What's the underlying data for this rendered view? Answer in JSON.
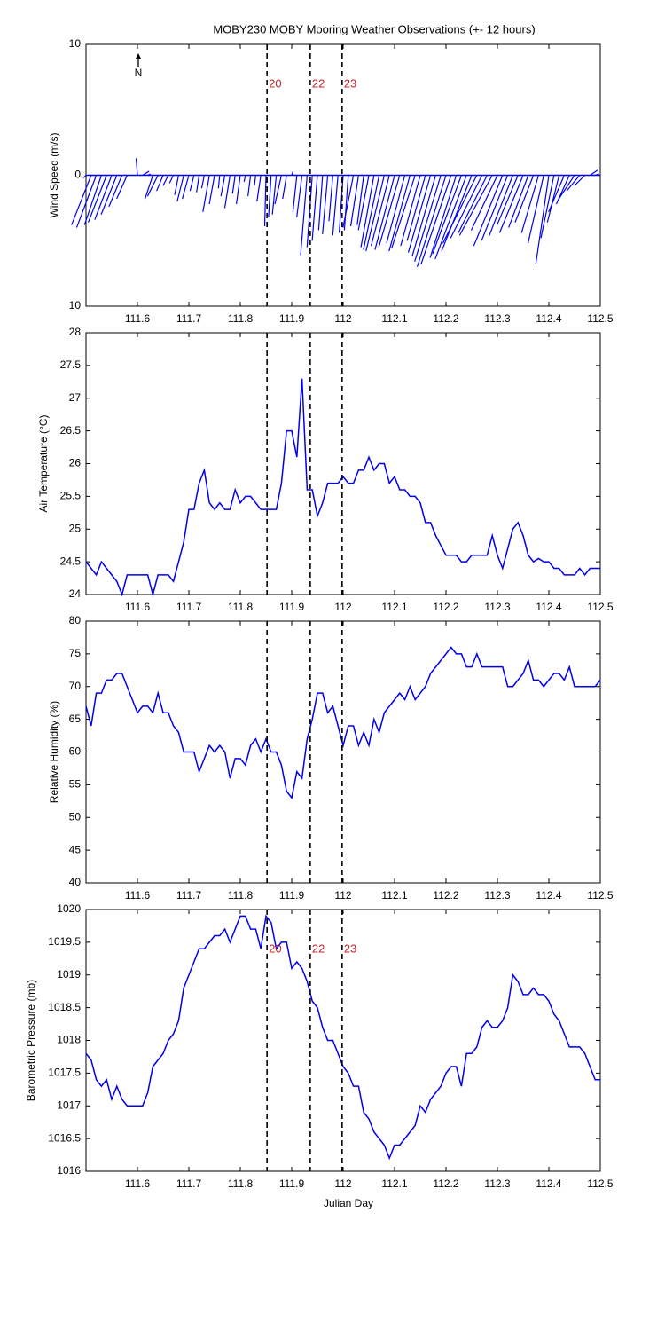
{
  "title": "MOBY230 MOBY Mooring Weather Observations (+- 12 hours)",
  "xlabel": "Julian Day",
  "xlim": [
    111.5,
    112.5
  ],
  "xticks": [
    111.6,
    111.7,
    111.8,
    111.9,
    112,
    112.1,
    112.2,
    112.3,
    112.4,
    112.5
  ],
  "events": [
    {
      "x": 111.852,
      "label": "20"
    },
    {
      "x": 111.936,
      "label": "22"
    },
    {
      "x": 111.998,
      "label": "23"
    }
  ],
  "x": [
    111.5,
    111.51,
    111.52,
    111.53,
    111.54,
    111.55,
    111.56,
    111.57,
    111.58,
    111.59,
    111.6,
    111.61,
    111.62,
    111.63,
    111.64,
    111.65,
    111.66,
    111.67,
    111.68,
    111.69,
    111.7,
    111.71,
    111.72,
    111.73,
    111.74,
    111.75,
    111.76,
    111.77,
    111.78,
    111.79,
    111.8,
    111.81,
    111.82,
    111.83,
    111.84,
    111.85,
    111.86,
    111.87,
    111.88,
    111.89,
    111.9,
    111.91,
    111.92,
    111.93,
    111.94,
    111.95,
    111.96,
    111.97,
    111.98,
    111.99,
    112,
    112.01,
    112.02,
    112.03,
    112.04,
    112.05,
    112.06,
    112.07,
    112.08,
    112.09,
    112.1,
    112.11,
    112.12,
    112.13,
    112.14,
    112.15,
    112.16,
    112.17,
    112.18,
    112.19,
    112.2,
    112.21,
    112.22,
    112.23,
    112.24,
    112.25,
    112.26,
    112.27,
    112.28,
    112.29,
    112.3,
    112.31,
    112.32,
    112.33,
    112.34,
    112.35,
    112.36,
    112.37,
    112.38,
    112.39,
    112.4,
    112.41,
    112.42,
    112.43,
    112.44,
    112.45,
    112.46,
    112.47,
    112.48,
    112.49,
    112.5
  ],
  "chart_data": [
    {
      "type": "stick",
      "ylabel": "Wind Speed (m/s)",
      "color": "#0000ee",
      "ylim": [
        -10,
        10
      ],
      "yticks": [
        {
          "value": -10,
          "label": "10"
        },
        0,
        10
      ],
      "north_label": "N",
      "show_event_labels": true,
      "u": [
        -0.2,
        -1.5,
        -1.5,
        -1.3,
        -1.4,
        -1.3,
        -1.2,
        -1.0,
        -0.8,
        0.0,
        -0.1,
        0.5,
        0.2,
        -0.6,
        -0.8,
        -0.5,
        -0.4,
        -0.3,
        -0.3,
        -0.5,
        -0.5,
        -0.3,
        -0.2,
        -0.2,
        -0.5,
        -0.4,
        -0.1,
        -0.3,
        -0.4,
        -0.2,
        -0.3,
        -0.1,
        -0.2,
        -0.1,
        -0.3,
        -0.1,
        -0.2,
        -0.3,
        -0.5,
        -0.3,
        0.1,
        -0.3,
        -0.4,
        -0.5,
        -0.4,
        -0.4,
        -0.3,
        -0.4,
        -0.3,
        -0.4,
        -0.3,
        -0.3,
        -0.8,
        -0.6,
        -0.5,
        -0.8,
        -1.0,
        -1.2,
        -1.4,
        -1.4,
        -1.5,
        -1.6,
        -1.4,
        -1.6,
        -1.8,
        -1.5,
        -1.4,
        -1.7,
        -1.8,
        -2.0,
        -2.2,
        -2.3,
        -2.0,
        -2.2,
        -2.4,
        -2.3,
        -2.6,
        -2.4,
        -2.2,
        -2.5,
        -2.0,
        -2.2,
        -2.0,
        -1.8,
        -1.6,
        -1.8,
        -1.5,
        -1.4,
        -1.3,
        -1.2,
        -1.0,
        -1.0,
        -0.9,
        -1.2,
        -1.0,
        -1.2,
        -1.0,
        -0.8,
        0.6,
        0.3,
        0.0
      ],
      "v": [
        -0.2,
        -3.8,
        -4.0,
        -3.8,
        -3.6,
        -3.4,
        -3.0,
        -2.4,
        -1.8,
        0.0,
        1.3,
        0.3,
        0.1,
        -1.8,
        -1.6,
        -1.2,
        -0.8,
        -0.6,
        -1.5,
        -2.0,
        -1.8,
        -1.2,
        -1.3,
        -1.0,
        -2.8,
        -2.2,
        -1.0,
        -1.6,
        -2.5,
        -1.4,
        -2.2,
        -0.5,
        -1.6,
        -0.8,
        -2.0,
        -3.9,
        -3.2,
        -3.0,
        -2.2,
        -1.8,
        0.3,
        -2.8,
        -3.2,
        -6.1,
        -5.5,
        -5.0,
        -4.2,
        -4.5,
        -3.5,
        -4.6,
        -4.4,
        -4.2,
        -4.0,
        -3.9,
        -3.8,
        -4.2,
        -5.5,
        -5.7,
        -5.8,
        -5.4,
        -5.7,
        -5.5,
        -5.2,
        -5.8,
        -5.6,
        -5.4,
        -5.0,
        -5.9,
        -6.2,
        -6.6,
        -7.0,
        -6.8,
        -6.3,
        -6.0,
        -6.4,
        -5.8,
        -5.2,
        -4.8,
        -4.4,
        -4.6,
        -4.2,
        -5.4,
        -5.0,
        -4.6,
        -3.8,
        -4.4,
        -4.0,
        -3.6,
        -4.4,
        -5.2,
        -6.8,
        -4.8,
        -3.6,
        -2.8,
        -2.2,
        -1.8,
        -1.2,
        -0.8,
        0.4,
        0.1,
        0.0
      ]
    },
    {
      "type": "line",
      "ylabel": "Air Temperature (°C)",
      "color": "#0000ee",
      "ylim": [
        24,
        28
      ],
      "yticks": [
        24,
        24.5,
        25,
        25.5,
        26,
        26.5,
        27,
        27.5,
        28
      ],
      "show_event_labels": false,
      "values": [
        24.5,
        24.4,
        24.3,
        24.5,
        24.4,
        24.3,
        24.2,
        24.0,
        24.3,
        24.3,
        24.3,
        24.3,
        24.3,
        24.0,
        24.3,
        24.3,
        24.3,
        24.2,
        24.5,
        24.8,
        25.3,
        25.3,
        25.7,
        25.9,
        25.4,
        25.3,
        25.4,
        25.3,
        25.3,
        25.6,
        25.4,
        25.5,
        25.5,
        25.4,
        25.3,
        25.3,
        25.3,
        25.3,
        25.7,
        26.5,
        26.5,
        26.1,
        27.3,
        25.6,
        25.6,
        25.2,
        25.4,
        25.7,
        25.7,
        25.7,
        25.8,
        25.7,
        25.7,
        25.9,
        25.9,
        26.1,
        25.9,
        26.0,
        26.0,
        25.7,
        25.8,
        25.6,
        25.6,
        25.5,
        25.5,
        25.4,
        25.1,
        25.1,
        24.9,
        24.75,
        24.6,
        24.6,
        24.6,
        24.5,
        24.5,
        24.6,
        24.6,
        24.6,
        24.6,
        24.9,
        24.6,
        24.4,
        24.7,
        25.0,
        25.1,
        24.9,
        24.6,
        24.5,
        24.55,
        24.5,
        24.5,
        24.4,
        24.4,
        24.3,
        24.3,
        24.3,
        24.4,
        24.3,
        24.4,
        24.4,
        24.4
      ]
    },
    {
      "type": "line",
      "ylabel": "Relative Humidity (%)",
      "color": "#0000ee",
      "ylim": [
        40,
        80
      ],
      "yticks": [
        40,
        45,
        50,
        55,
        60,
        65,
        70,
        75,
        80
      ],
      "show_event_labels": false,
      "values": [
        67,
        64,
        69,
        69,
        71,
        71,
        72,
        72,
        70,
        68,
        66,
        67,
        67,
        66,
        69,
        66,
        66,
        64,
        63,
        60,
        60,
        60,
        57,
        59,
        61,
        60,
        61,
        60,
        56,
        59,
        59,
        58,
        61,
        62,
        60,
        62,
        60,
        60,
        58,
        54,
        53,
        57,
        56,
        62,
        65,
        69,
        69,
        66,
        67,
        64,
        61,
        64,
        64,
        61,
        63,
        61,
        65,
        63,
        66,
        67,
        68,
        69,
        68,
        70,
        68,
        69,
        70,
        72,
        73,
        74,
        75,
        76,
        75,
        75,
        73,
        73,
        75,
        73,
        73,
        73,
        73,
        73,
        70,
        70,
        71,
        72,
        74,
        71,
        71,
        70,
        71,
        72,
        72,
        71,
        73,
        70,
        70,
        70,
        70,
        70,
        71
      ]
    },
    {
      "type": "line",
      "ylabel": "Barometric Pressure (mb)",
      "color": "#0000ee",
      "ylim": [
        1016,
        1020
      ],
      "yticks": [
        1016,
        1016.5,
        1017,
        1017.5,
        1018,
        1018.5,
        1019,
        1019.5,
        1020
      ],
      "show_event_labels": true,
      "values": [
        1017.8,
        1017.7,
        1017.4,
        1017.3,
        1017.4,
        1017.1,
        1017.3,
        1017.1,
        1017.0,
        1017.0,
        1017.0,
        1017.0,
        1017.2,
        1017.6,
        1017.7,
        1017.8,
        1018.0,
        1018.1,
        1018.3,
        1018.8,
        1019.0,
        1019.2,
        1019.4,
        1019.4,
        1019.5,
        1019.6,
        1019.6,
        1019.7,
        1019.5,
        1019.7,
        1019.9,
        1019.9,
        1019.7,
        1019.7,
        1019.4,
        1019.9,
        1019.8,
        1019.4,
        1019.5,
        1019.5,
        1019.1,
        1019.2,
        1019.1,
        1018.9,
        1018.6,
        1018.5,
        1018.2,
        1018.0,
        1018.0,
        1017.8,
        1017.6,
        1017.5,
        1017.3,
        1017.3,
        1016.9,
        1016.8,
        1016.6,
        1016.5,
        1016.4,
        1016.2,
        1016.4,
        1016.4,
        1016.5,
        1016.6,
        1016.7,
        1017.0,
        1016.9,
        1017.1,
        1017.2,
        1017.3,
        1017.5,
        1017.6,
        1017.6,
        1017.3,
        1017.8,
        1017.8,
        1017.9,
        1018.2,
        1018.3,
        1018.2,
        1018.2,
        1018.3,
        1018.5,
        1019.0,
        1018.9,
        1018.7,
        1018.7,
        1018.8,
        1018.7,
        1018.7,
        1018.6,
        1018.4,
        1018.3,
        1018.1,
        1017.9,
        1017.9,
        1017.9,
        1017.8,
        1017.6,
        1017.4,
        1017.4
      ]
    }
  ]
}
